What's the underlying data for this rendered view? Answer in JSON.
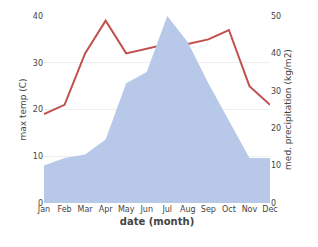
{
  "chart_data": {
    "type": "line",
    "categories": [
      "Jan",
      "Feb",
      "Mar",
      "Apr",
      "May",
      "Jun",
      "Jul",
      "Aug",
      "Sep",
      "Oct",
      "Nov",
      "Dec"
    ],
    "series": [
      {
        "type": "area",
        "axis": "y2",
        "color": "#b8c8e8",
        "values": [
          10,
          12,
          13,
          17,
          32,
          35,
          50,
          43,
          32,
          22,
          12,
          12
        ]
      },
      {
        "type": "line",
        "color": "#c0504d",
        "values": [
          19,
          21,
          32,
          39,
          32,
          33,
          34,
          34,
          35,
          37,
          25,
          21
        ]
      }
    ],
    "xlabel": "date (month)",
    "ylabel": "max temp (C)",
    "y2label": "med. precipitation (kg/m2)",
    "ylim": [
      0,
      40
    ],
    "yticks": [
      0,
      10,
      20,
      30,
      40
    ],
    "y2lim": [
      0,
      50
    ],
    "y2ticks": [
      0,
      10,
      20,
      30,
      40,
      50
    ],
    "grid": true
  }
}
